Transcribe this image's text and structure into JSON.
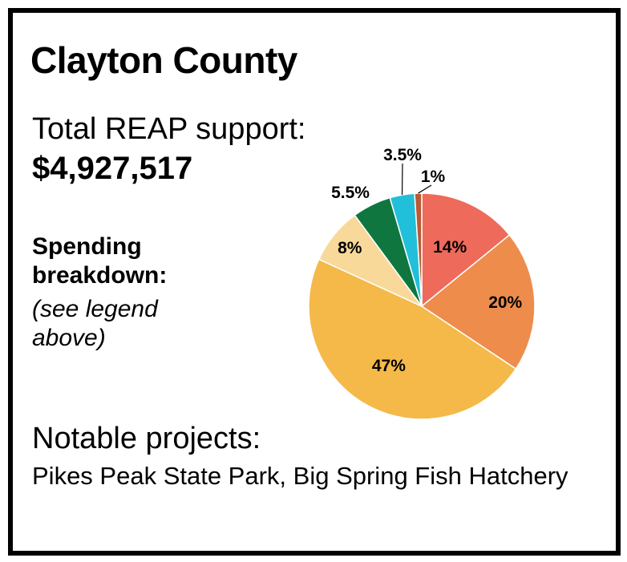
{
  "card": {
    "title": "Clayton County",
    "total_label": "Total REAP support:",
    "total_value": "$4,927,517",
    "spending_label": "Spending breakdown:",
    "spending_note": "(see legend above)",
    "notable_label": "Notable projects:",
    "notable_text": "Pikes Peak State Park, Big Spring Fish Hatchery"
  },
  "chart_data": {
    "type": "pie",
    "title": "",
    "unit": "%",
    "slices": [
      {
        "label": "14%",
        "value": 14,
        "color": "#ee6a5b"
      },
      {
        "label": "20%",
        "value": 20,
        "color": "#ee8c4c"
      },
      {
        "label": "47%",
        "value": 47,
        "color": "#f4b949"
      },
      {
        "label": "8%",
        "value": 8,
        "color": "#f8d99a"
      },
      {
        "label": "5.5%",
        "value": 5.5,
        "color": "#0f7640"
      },
      {
        "label": "3.5%",
        "value": 3.5,
        "color": "#22bfda"
      },
      {
        "label": "1%",
        "value": 1,
        "color": "#b85a35"
      }
    ]
  }
}
